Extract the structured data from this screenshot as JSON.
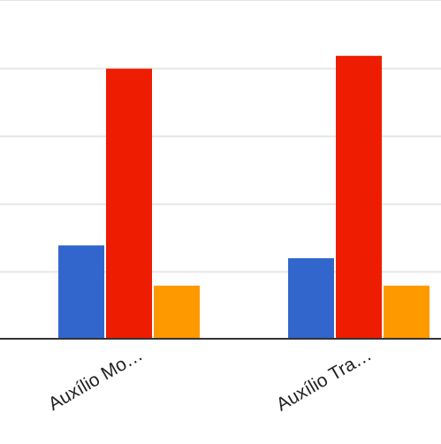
{
  "chart_data": {
    "type": "bar",
    "categories": [
      "Auxílio Mo…",
      "Auxílio Tra…"
    ],
    "series": [
      {
        "color": "#3366cc",
        "values": [
          102,
          88
        ]
      },
      {
        "color": "#ee1c00",
        "values": [
          295,
          309
        ]
      },
      {
        "color": "#ff9900",
        "values": [
          58,
          58
        ]
      }
    ],
    "ylim": [
      0,
      370
    ],
    "yticks": [
      0,
      73,
      147,
      221,
      295,
      370
    ],
    "grid": true,
    "legend": "none",
    "axis_color": "#333333",
    "grid_color": "#e6e6e6"
  }
}
